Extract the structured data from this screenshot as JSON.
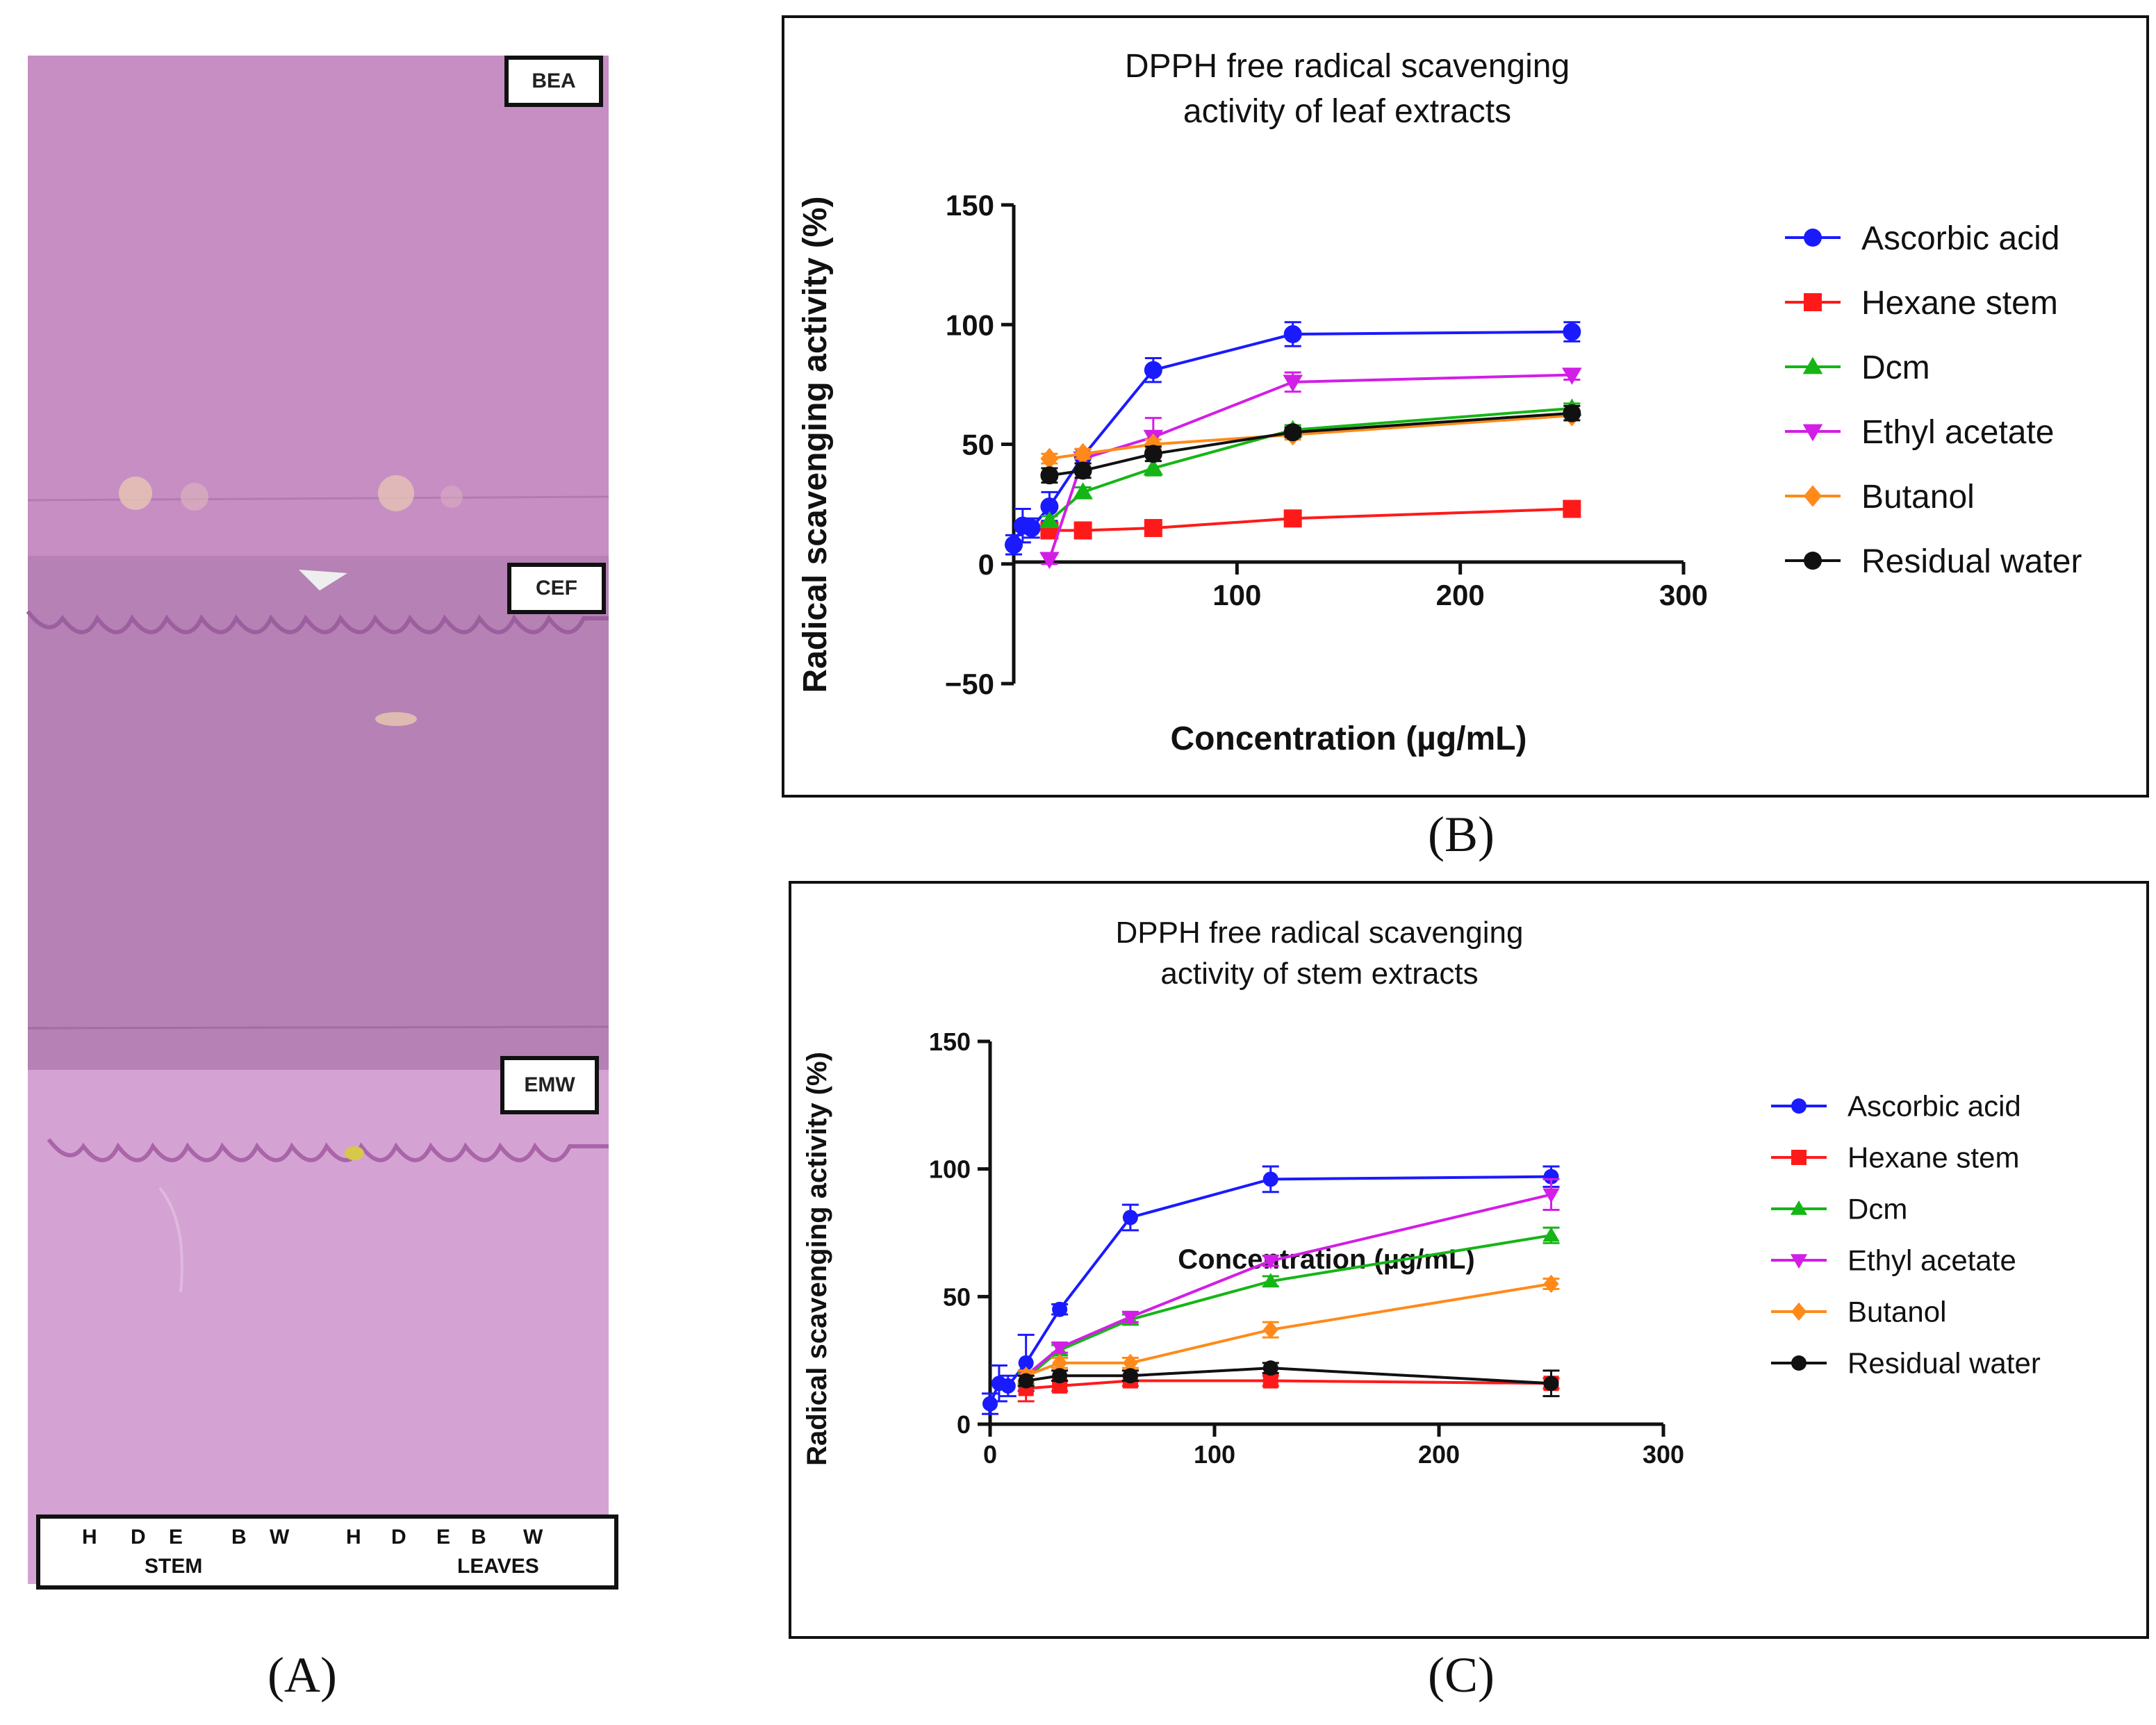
{
  "panels": {
    "a_label": "(A)",
    "b_label": "(B)",
    "c_label": "(C)"
  },
  "tlc": {
    "systems": [
      "BEA",
      "CEF",
      "EMW"
    ],
    "lanes": [
      "H",
      "D",
      "E",
      "B",
      "W",
      "H",
      "D",
      "E",
      "B",
      "W"
    ],
    "group_stem": "STEM",
    "group_leaves": "LEAVES",
    "plate_color": "#c98fc4"
  },
  "chart_data": [
    {
      "id": "leaf",
      "type": "line",
      "title": "DPPH free radical scavenging activity of leaf extracts",
      "title_lines": [
        "DPPH free radical scavenging",
        "activity of leaf extracts"
      ],
      "xlabel": "Concentration (µg/mL)",
      "ylabel": "Radical scavenging activity (%)",
      "xlim": [
        0,
        300
      ],
      "ylim": [
        -50,
        150
      ],
      "xticks": [
        100,
        200,
        300
      ],
      "yticks": [
        -50,
        0,
        50,
        100,
        150
      ],
      "ytick_labels": [
        "−50",
        "0",
        "50",
        "100",
        "150"
      ],
      "legend_position": "right",
      "series": [
        {
          "name": "Ascorbic acid",
          "color": "#1a1aff",
          "marker": "circle",
          "x": [
            0,
            4,
            8,
            16,
            31,
            62.5,
            125,
            250
          ],
          "y": [
            8,
            16,
            15,
            24,
            45,
            81,
            96,
            97
          ],
          "err": [
            4,
            7,
            4,
            6,
            3,
            5,
            5,
            4
          ]
        },
        {
          "name": "Hexane stem",
          "color": "#ff1a1a",
          "marker": "square",
          "x": [
            16,
            31,
            62.5,
            125,
            250
          ],
          "y": [
            14,
            14,
            15,
            19,
            23
          ],
          "err": [
            2,
            2,
            2,
            2,
            2
          ]
        },
        {
          "name": "Dcm",
          "color": "#16b516",
          "marker": "triangle-up",
          "x": [
            16,
            31,
            62.5,
            125,
            250
          ],
          "y": [
            18,
            30,
            40,
            56,
            65
          ],
          "err": [
            2,
            2,
            3,
            2,
            2
          ]
        },
        {
          "name": "Ethyl acetate",
          "color": "#d21ee6",
          "marker": "triangle-down",
          "x": [
            16,
            31,
            62.5,
            125,
            250
          ],
          "y": [
            2,
            44,
            53,
            76,
            79
          ],
          "err": [
            2,
            2,
            8,
            4,
            2
          ]
        },
        {
          "name": "Butanol",
          "color": "#ff8a1a",
          "marker": "diamond",
          "x": [
            16,
            31,
            62.5,
            125,
            250
          ],
          "y": [
            44,
            46,
            50,
            54,
            62
          ],
          "err": [
            2,
            2,
            2,
            2,
            2
          ]
        },
        {
          "name": "Residual water",
          "color": "#111111",
          "marker": "circle",
          "x": [
            16,
            31,
            62.5,
            125,
            250
          ],
          "y": [
            37,
            39,
            46,
            55,
            63
          ],
          "err": [
            3,
            3,
            3,
            2,
            3
          ]
        }
      ]
    },
    {
      "id": "stem",
      "type": "line",
      "title": "DPPH free radical scavenging activity of stem extracts",
      "title_lines": [
        "DPPH free radical scavenging",
        "activity of stem extracts"
      ],
      "xlabel": "Concentration (µg/mL)",
      "ylabel": "Radical scavenging activity (%)",
      "xlim": [
        0,
        300
      ],
      "ylim": [
        0,
        150
      ],
      "xticks": [
        0,
        100,
        200,
        300
      ],
      "yticks": [
        0,
        50,
        100,
        150
      ],
      "ytick_labels": [
        "0",
        "50",
        "100",
        "150"
      ],
      "legend_position": "right",
      "series": [
        {
          "name": "Ascorbic acid",
          "color": "#1a1aff",
          "marker": "circle",
          "x": [
            0,
            4,
            8,
            16,
            31,
            62.5,
            125,
            250
          ],
          "y": [
            8,
            16,
            15,
            24,
            45,
            81,
            96,
            97
          ],
          "err": [
            4,
            7,
            4,
            11,
            2,
            5,
            5,
            4
          ]
        },
        {
          "name": "Hexane stem",
          "color": "#ff1a1a",
          "marker": "square",
          "x": [
            16,
            31,
            62.5,
            125,
            250
          ],
          "y": [
            14,
            15,
            17,
            17,
            16
          ],
          "err": [
            5,
            2,
            2,
            2,
            2
          ]
        },
        {
          "name": "Dcm",
          "color": "#16b516",
          "marker": "triangle-up",
          "x": [
            16,
            31,
            62.5,
            125,
            250
          ],
          "y": [
            18,
            29,
            41,
            56,
            74
          ],
          "err": [
            2,
            2,
            2,
            2,
            3
          ]
        },
        {
          "name": "Ethyl acetate",
          "color": "#d21ee6",
          "marker": "triangle-down",
          "x": [
            16,
            31,
            62.5,
            125,
            250
          ],
          "y": [
            19,
            30,
            42,
            64,
            90
          ],
          "err": [
            2,
            2,
            2,
            2,
            6
          ]
        },
        {
          "name": "Butanol",
          "color": "#ff8a1a",
          "marker": "diamond",
          "x": [
            16,
            31,
            62.5,
            125,
            250
          ],
          "y": [
            19,
            24,
            24,
            37,
            55
          ],
          "err": [
            2,
            2,
            2,
            3,
            2
          ]
        },
        {
          "name": "Residual water",
          "color": "#111111",
          "marker": "circle",
          "x": [
            16,
            31,
            62.5,
            125,
            250
          ],
          "y": [
            17,
            19,
            19,
            22,
            16
          ],
          "err": [
            2,
            2,
            2,
            2,
            5
          ]
        }
      ]
    }
  ]
}
